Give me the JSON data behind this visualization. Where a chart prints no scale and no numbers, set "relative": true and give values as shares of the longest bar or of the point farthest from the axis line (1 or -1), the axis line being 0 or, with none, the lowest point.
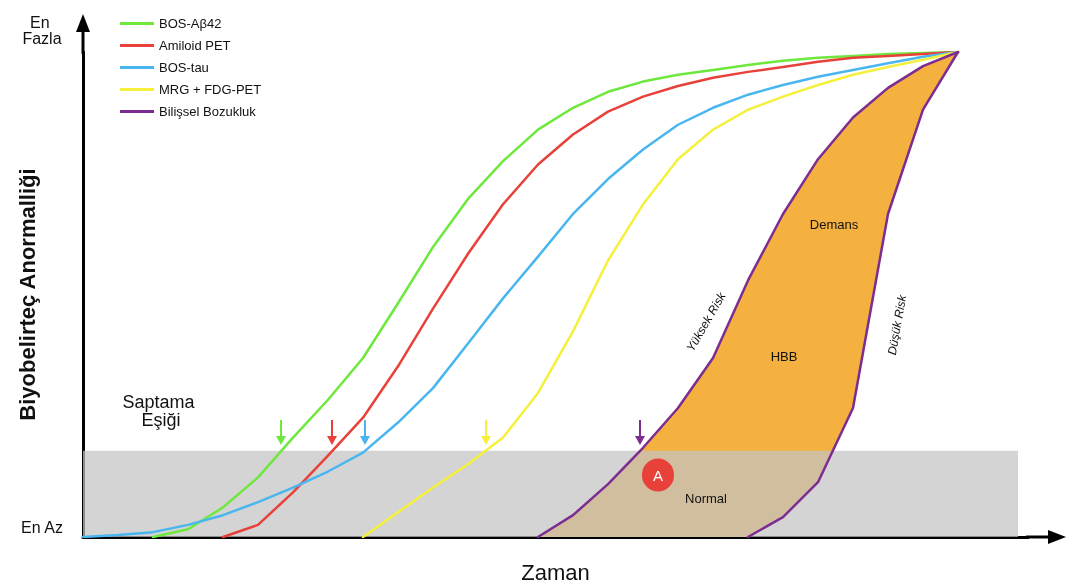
{
  "chart_data": {
    "type": "line",
    "relative": true,
    "xlabel": "Zaman",
    "ylabel": "Biyobelirteç Anormalliği",
    "categories": [
      null,
      null,
      null,
      null,
      null,
      null,
      null,
      null,
      null,
      null,
      null,
      null,
      null,
      null,
      null,
      null,
      null,
      null,
      null,
      null,
      null,
      null,
      null,
      null,
      null,
      null,
      null,
      null
    ],
    "series": [
      {
        "name": "BOS-Aβ42",
        "color": "#6ee83c",
        "values": [
          null,
          null,
          0,
          0.016,
          0.061,
          0.123,
          0.205,
          0.283,
          0.369,
          0.482,
          0.598,
          0.697,
          0.775,
          0.84,
          0.885,
          0.918,
          0.939,
          0.953,
          0.963,
          0.973,
          0.982,
          0.988,
          0.992,
          0.996,
          0.998,
          1,
          null,
          null
        ]
      },
      {
        "name": "Amiloid PET",
        "color": "#e8413a",
        "values": [
          null,
          null,
          null,
          null,
          0,
          0.025,
          0.092,
          0.168,
          0.246,
          0.352,
          0.471,
          0.584,
          0.686,
          0.768,
          0.83,
          0.877,
          0.908,
          0.93,
          0.947,
          0.959,
          0.969,
          0.98,
          0.988,
          0.992,
          0.996,
          1,
          null,
          null
        ]
      },
      {
        "name": "BOS-tau",
        "color": "#4ab6f0",
        "values": [
          0,
          0.004,
          0.01,
          0.025,
          0.045,
          0.072,
          0.102,
          0.135,
          0.174,
          0.236,
          0.307,
          0.399,
          0.492,
          0.578,
          0.666,
          0.738,
          0.799,
          0.85,
          0.885,
          0.912,
          0.932,
          0.949,
          0.963,
          0.977,
          0.99,
          1,
          null,
          null
        ]
      },
      {
        "name": "MRG + FDG-PET",
        "color": "#f5f03c",
        "values": [
          null,
          null,
          null,
          null,
          null,
          null,
          null,
          null,
          0,
          0.051,
          0.102,
          0.15,
          0.205,
          0.297,
          0.424,
          0.57,
          0.686,
          0.779,
          0.84,
          0.881,
          0.908,
          0.932,
          0.953,
          0.969,
          0.984,
          1,
          null,
          null
        ]
      },
      {
        "name": "Bilişsel Bozukluk",
        "color": "#7d2d91",
        "values": [
          null,
          null,
          null,
          null,
          null,
          null,
          null,
          null,
          null,
          null,
          null,
          null,
          null,
          0,
          0.045,
          0.109,
          0.184,
          0.266,
          0.369,
          0.529,
          0.666,
          0.779,
          0.865,
          0.926,
          0.971,
          1,
          null,
          null
        ],
        "upper": [
          null,
          null,
          null,
          null,
          null,
          null,
          null,
          null,
          null,
          null,
          null,
          null,
          null,
          0,
          0.045,
          0.109,
          0.184,
          0.266,
          0.369,
          0.529,
          0.666,
          0.779,
          0.865,
          0.926,
          0.971,
          1,
          null,
          null
        ],
        "lower": [
          null,
          null,
          null,
          null,
          null,
          null,
          null,
          null,
          null,
          null,
          null,
          null,
          null,
          0,
          0,
          0,
          0,
          0,
          0,
          0,
          0.041,
          0.113,
          0.266,
          0.666,
          0.881,
          1,
          null,
          null
        ]
      },
      {
        "color": "#7d2d91",
        "values": [
          null,
          null,
          null,
          null,
          null,
          null,
          null,
          null,
          null,
          null,
          null,
          null,
          null,
          null,
          null,
          null,
          null,
          null,
          null,
          0,
          0.041,
          0.113,
          0.266,
          0.666,
          0.881,
          1,
          null,
          null
        ]
      }
    ],
    "bands": [
      {
        "axis": "y",
        "from": 0,
        "to": 0.178,
        "label": "Saptama Eşiği",
        "color": "#c4c4c4"
      }
    ],
    "annotations": [
      "Yüksek Risk",
      "Düşük Risk",
      "Demans",
      "HBB",
      "Normal",
      "A",
      "En Fazla",
      "En Az"
    ],
    "legend": "top left",
    "marker": "none",
    "line_style": "solid",
    "grid": false
  }
}
